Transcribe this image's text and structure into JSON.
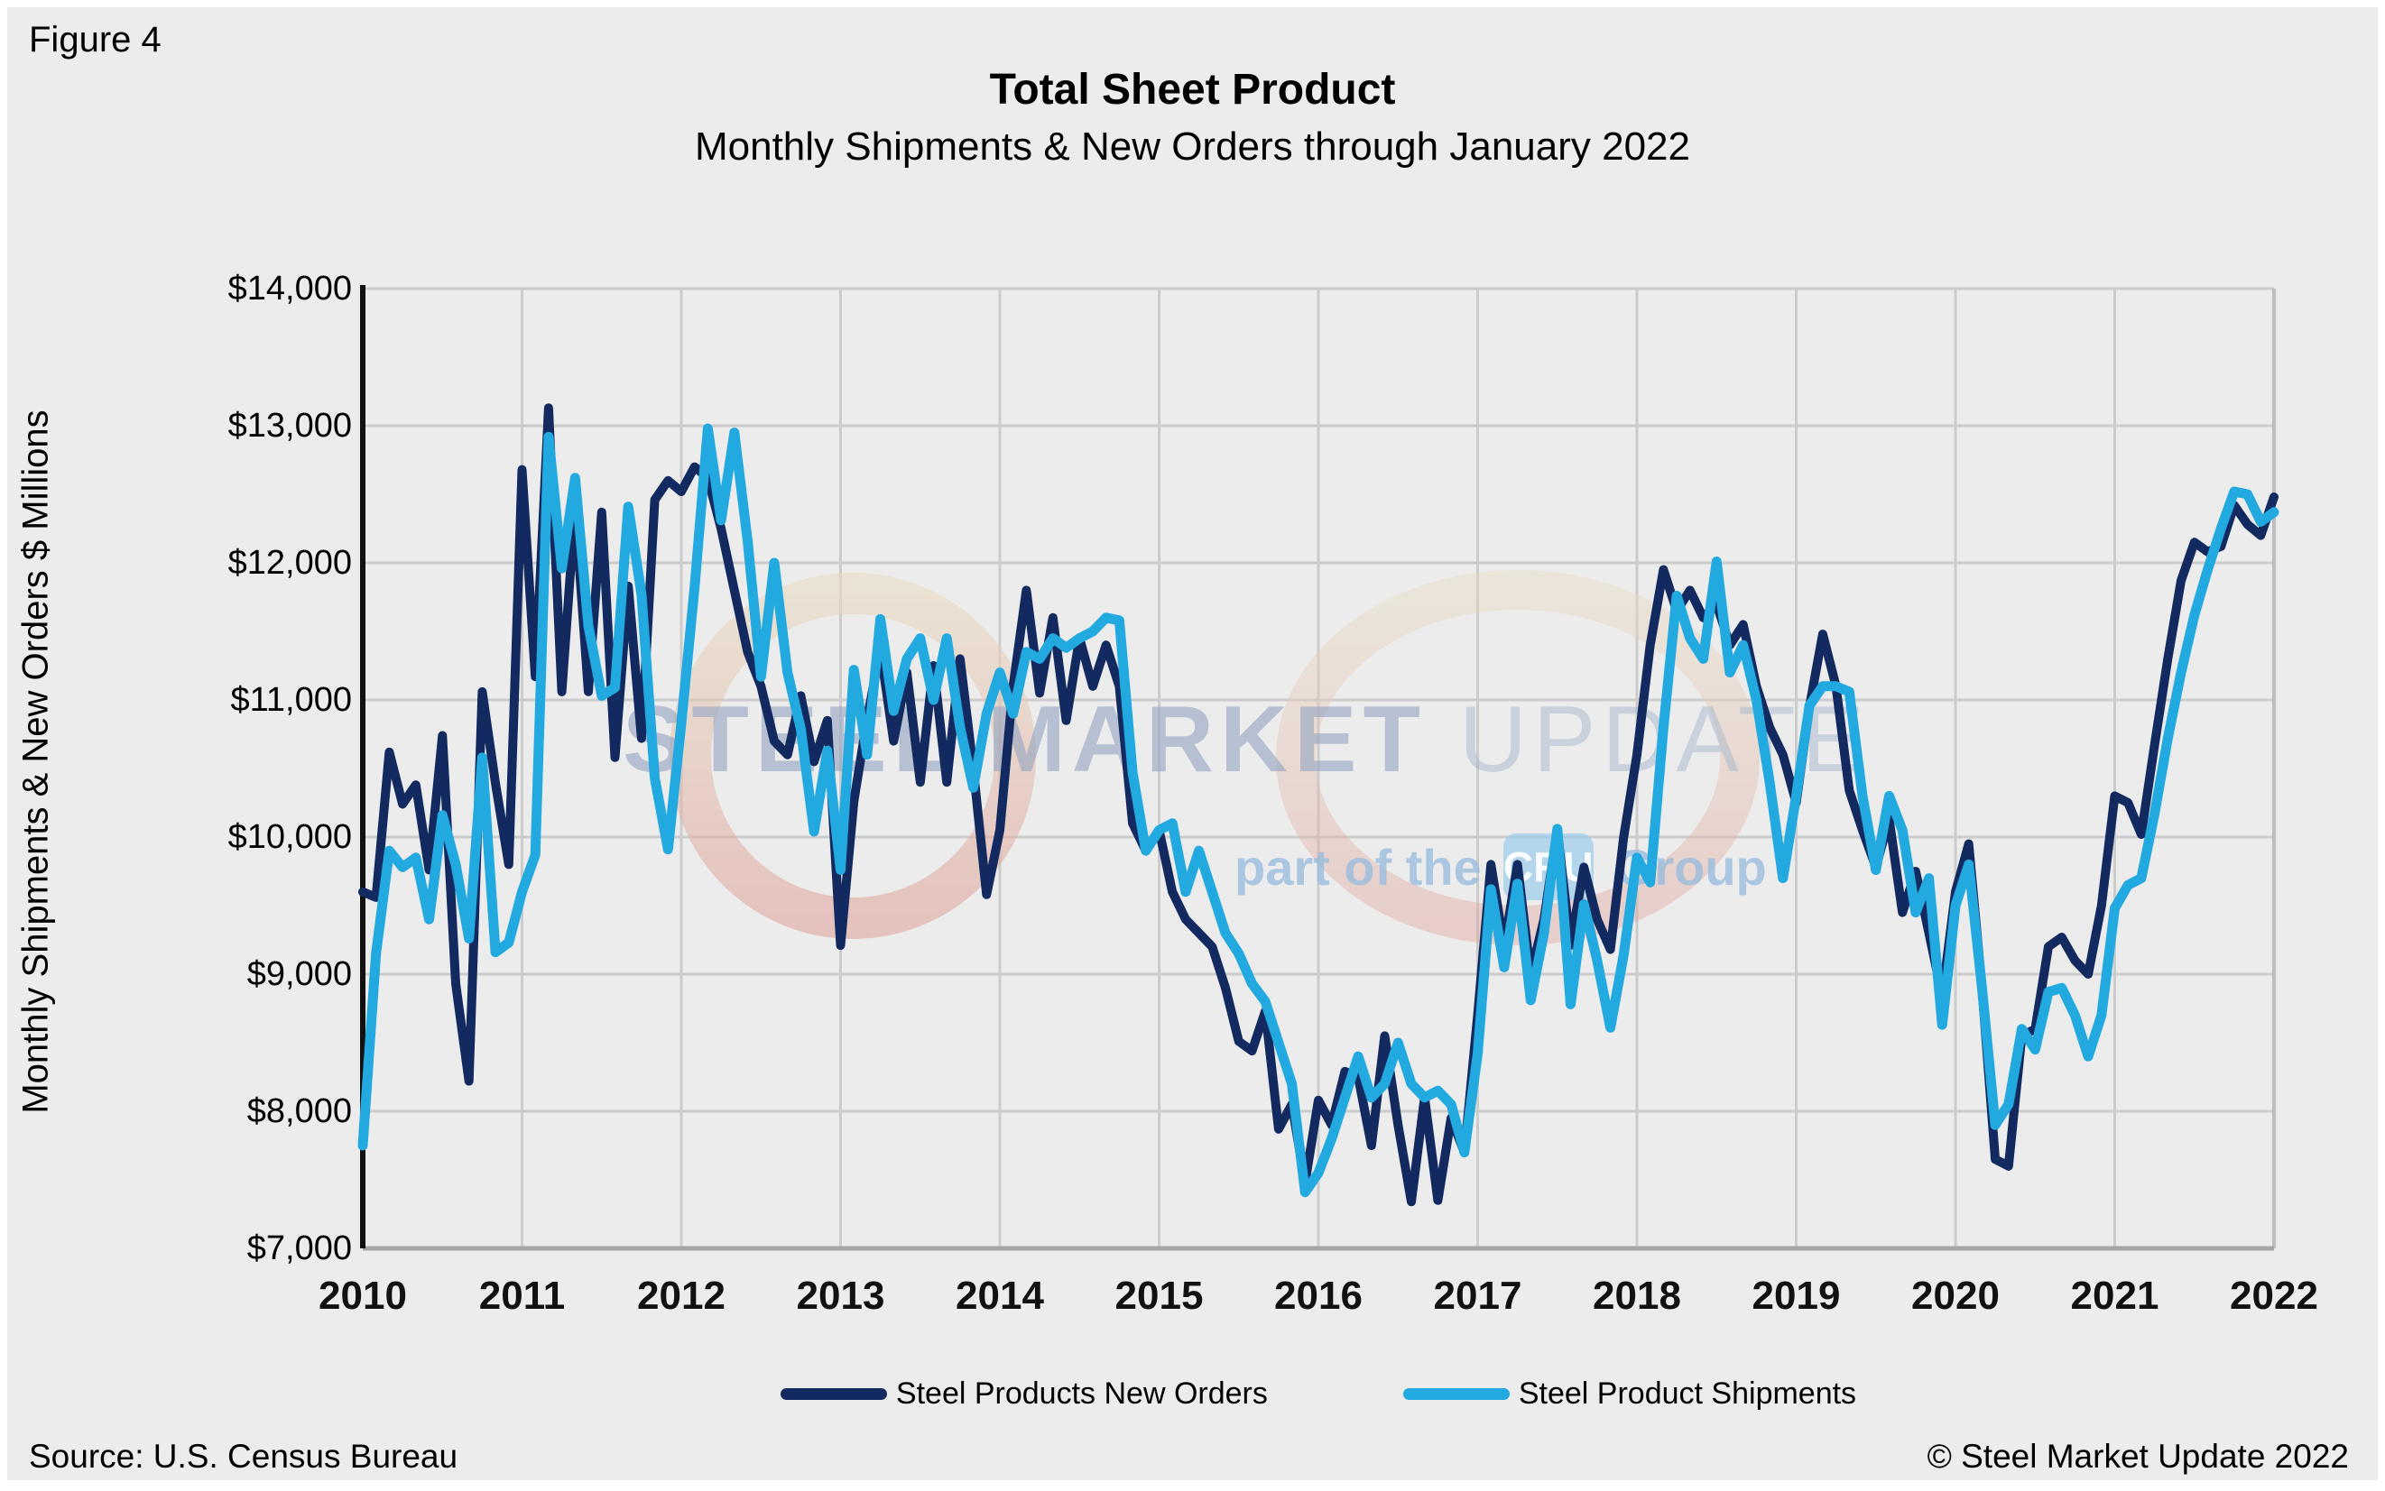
{
  "figure_label": "Figure 4",
  "title": "Total Sheet Product",
  "subtitle": "Monthly Shipments & New Orders through January 2022",
  "y_axis_title": "Monthly Shipments & New Orders $ Millions",
  "source": "Source: U.S. Census Bureau",
  "copyright": "© Steel Market Update 2022",
  "watermark": {
    "main_bold": "STEEL MARKET",
    "main_light": " UPDATE",
    "sub_prefix": "part of the",
    "badge": "CRU",
    "sub_suffix": "Group"
  },
  "colors": {
    "background": "#ececec",
    "gridline": "#cccccc",
    "axis_left": "#111111",
    "axis_bottom": "#a6a6a6",
    "axis_right": "#bdbdbd",
    "new_orders": "#132a60",
    "shipments": "#22a9e0",
    "watermark_ring_top": "#e8d9be",
    "watermark_ring_bottom": "#dfa099"
  },
  "legend": [
    {
      "label": "Steel Products New Orders",
      "color": "#132a60"
    },
    {
      "label": "Steel Product Shipments",
      "color": "#22a9e0"
    }
  ],
  "chart_data": {
    "type": "line",
    "x_range": "Monthly, January 2010 through January 2022",
    "ylim": [
      7000,
      14000
    ],
    "grid": true,
    "legend_position": "bottom",
    "y_ticks": [
      {
        "value": 14000,
        "label": "$14,000"
      },
      {
        "value": 13000,
        "label": "$13,000"
      },
      {
        "value": 12000,
        "label": "$12,000"
      },
      {
        "value": 11000,
        "label": "$11,000"
      },
      {
        "value": 10000,
        "label": "$10,000"
      },
      {
        "value": 9000,
        "label": "$9,000"
      },
      {
        "value": 8000,
        "label": "$8,000"
      },
      {
        "value": 7000,
        "label": "$7,000"
      }
    ],
    "year_labels": [
      "2010",
      "2011",
      "2012",
      "2013",
      "2014",
      "2015",
      "2016",
      "2017",
      "2018",
      "2019",
      "2020",
      "2021",
      "2022"
    ],
    "series": [
      {
        "name": "Steel Products New Orders",
        "color": "#132a60",
        "stroke_width": 10,
        "values": [
          9600,
          9560,
          10620,
          10240,
          10380,
          9760,
          10740,
          8930,
          8220,
          11060,
          10390,
          9800,
          12680,
          11170,
          13130,
          11060,
          12410,
          11060,
          12370,
          10580,
          11830,
          10720,
          12460,
          12600,
          12520,
          12700,
          12620,
          12250,
          11800,
          11350,
          11100,
          10700,
          10600,
          11030,
          10550,
          10850,
          9210,
          10260,
          10860,
          11370,
          10700,
          11200,
          10400,
          11250,
          10400,
          11300,
          10500,
          9580,
          10050,
          11100,
          11800,
          11050,
          11600,
          10850,
          11450,
          11100,
          11400,
          11100,
          10100,
          9900,
          10050,
          9600,
          9400,
          9300,
          9200,
          8900,
          8510,
          8440,
          8730,
          7870,
          8050,
          7480,
          8080,
          7900,
          8290,
          8250,
          7750,
          8550,
          7900,
          7340,
          8100,
          7350,
          7950,
          7700,
          8700,
          9800,
          9200,
          9800,
          9000,
          9400,
          10050,
          9210,
          9780,
          9400,
          9180,
          10000,
          10600,
          11400,
          11950,
          11650,
          11800,
          11600,
          11700,
          11400,
          11550,
          11100,
          10800,
          10600,
          10250,
          10950,
          11480,
          11100,
          10340,
          10050,
          9780,
          10130,
          9450,
          9750,
          9300,
          8840,
          9600,
          9950,
          8900,
          7650,
          7600,
          8550,
          8600,
          9200,
          9270,
          9100,
          9000,
          9500,
          10300,
          10250,
          10020,
          10670,
          11300,
          11870,
          12150,
          12080,
          12120,
          12420,
          12280,
          12200,
          12480
        ]
      },
      {
        "name": "Steel Product Shipments",
        "color": "#22a9e0",
        "stroke_width": 11,
        "values": [
          7750,
          9150,
          9900,
          9780,
          9850,
          9400,
          10160,
          9800,
          9260,
          10580,
          9160,
          9230,
          9600,
          9870,
          12920,
          11960,
          12620,
          11540,
          11030,
          11090,
          12410,
          11770,
          10430,
          9910,
          10830,
          11820,
          12980,
          12310,
          12950,
          12160,
          11170,
          12000,
          11200,
          10790,
          10040,
          10630,
          9760,
          11220,
          10600,
          11590,
          10920,
          11300,
          11450,
          11000,
          11450,
          10800,
          10360,
          10900,
          11200,
          10900,
          11350,
          11300,
          11450,
          11380,
          11450,
          11500,
          11600,
          11580,
          10470,
          9900,
          10050,
          10100,
          9600,
          9900,
          9600,
          9300,
          9150,
          8930,
          8800,
          8500,
          8200,
          7410,
          7550,
          7800,
          8100,
          8400,
          8100,
          8200,
          8500,
          8200,
          8100,
          8150,
          8050,
          7700,
          8420,
          9620,
          9050,
          9660,
          8810,
          9300,
          10060,
          8780,
          9510,
          9100,
          8610,
          9140,
          9850,
          9670,
          10800,
          11760,
          11450,
          11300,
          12010,
          11200,
          11400,
          11000,
          10400,
          9700,
          10300,
          10960,
          11100,
          11100,
          11060,
          10300,
          9760,
          10300,
          10050,
          9450,
          9700,
          8630,
          9500,
          9800,
          8900,
          7900,
          8050,
          8600,
          8450,
          8870,
          8900,
          8700,
          8400,
          8700,
          9480,
          9650,
          9700,
          10170,
          10720,
          11200,
          11620,
          11950,
          12250,
          12520,
          12500,
          12300,
          12370
        ]
      }
    ]
  }
}
